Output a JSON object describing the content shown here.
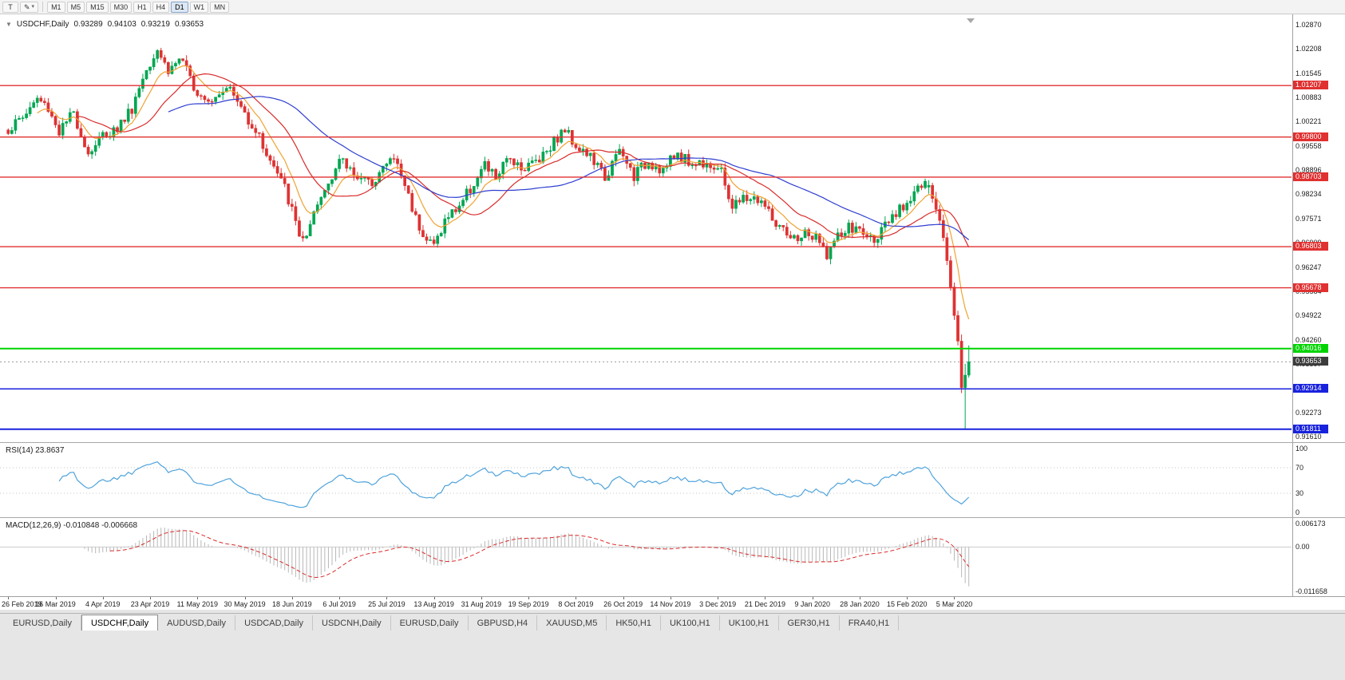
{
  "toolbar": {
    "text_tool_label": "T",
    "draw_tool_glyph": "✎",
    "dropdown_glyph": "▾",
    "timeframes": [
      {
        "label": "M1",
        "active": false
      },
      {
        "label": "M5",
        "active": false
      },
      {
        "label": "M15",
        "active": false
      },
      {
        "label": "M30",
        "active": false
      },
      {
        "label": "H1",
        "active": false
      },
      {
        "label": "H4",
        "active": false
      },
      {
        "label": "D1",
        "active": true
      },
      {
        "label": "W1",
        "active": false
      },
      {
        "label": "MN",
        "active": false
      }
    ]
  },
  "chart": {
    "collapse_glyph": "▼",
    "symbol_title": "USDCHF,Daily",
    "ohlc": {
      "open": "0.93289",
      "high": "0.94103",
      "low": "0.93219",
      "close": "0.93653"
    }
  },
  "chart_data": {
    "type": "candlestick",
    "symbol": "USDCHF",
    "timeframe": "Daily",
    "count": 265,
    "date_tick_interval": 13,
    "noise": 0.0017,
    "x_labels": [
      "26 Feb 2019",
      "16 Mar 2019",
      "4 Apr 2019",
      "23 Apr 2019",
      "11 May 2019",
      "30 May 2019",
      "18 Jun 2019",
      "6 Jul 2019",
      "25 Jul 2019",
      "13 Aug 2019",
      "31 Aug 2019",
      "19 Sep 2019",
      "8 Oct 2019",
      "26 Oct 2019",
      "14 Nov 2019",
      "3 Dec 2019",
      "21 Dec 2019",
      "9 Jan 2020",
      "28 Jan 2020",
      "15 Feb 2020",
      "5 Mar 2020"
    ],
    "price_axis": {
      "min": 0.9161,
      "max": 1.0287,
      "labels": [
        "1.02870",
        "1.02208",
        "1.01545",
        "1.00883",
        "1.00221",
        "0.99558",
        "0.98896",
        "0.98234",
        "0.97571",
        "0.96909",
        "0.96247",
        "0.95584",
        "0.94922",
        "0.94260",
        "0.93597",
        "0.92935",
        "0.92273",
        "0.91610"
      ]
    },
    "anchors": [
      [
        0,
        1.0
      ],
      [
        4,
        1.0035
      ],
      [
        8,
        1.0085
      ],
      [
        11,
        1.006
      ],
      [
        14,
        0.9995
      ],
      [
        18,
        1.0045
      ],
      [
        22,
        0.9935
      ],
      [
        26,
        0.9985
      ],
      [
        30,
        1.0005
      ],
      [
        34,
        1.006
      ],
      [
        38,
        1.017
      ],
      [
        41,
        1.0225
      ],
      [
        44,
        1.016
      ],
      [
        47,
        1.0195
      ],
      [
        52,
        1.0105
      ],
      [
        56,
        1.0085
      ],
      [
        60,
        1.0125
      ],
      [
        64,
        1.006
      ],
      [
        68,
        1.0
      ],
      [
        72,
        0.9915
      ],
      [
        76,
        0.984
      ],
      [
        80,
        0.9715
      ],
      [
        82,
        0.97
      ],
      [
        85,
        0.979
      ],
      [
        89,
        0.988
      ],
      [
        91,
        0.9915
      ],
      [
        95,
        0.9885
      ],
      [
        99,
        0.985
      ],
      [
        103,
        0.9895
      ],
      [
        106,
        0.9925
      ],
      [
        109,
        0.985
      ],
      [
        112,
        0.976
      ],
      [
        115,
        0.97
      ],
      [
        117,
        0.9685
      ],
      [
        120,
        0.975
      ],
      [
        124,
        0.9795
      ],
      [
        128,
        0.9855
      ],
      [
        131,
        0.99
      ],
      [
        134,
        0.987
      ],
      [
        138,
        0.9925
      ],
      [
        142,
        0.9895
      ],
      [
        146,
        0.9925
      ],
      [
        150,
        0.997
      ],
      [
        153,
        1.0
      ],
      [
        156,
        0.996
      ],
      [
        160,
        0.9925
      ],
      [
        164,
        0.987
      ],
      [
        168,
        0.994
      ],
      [
        172,
        0.9875
      ],
      [
        176,
        0.9915
      ],
      [
        180,
        0.989
      ],
      [
        184,
        0.9935
      ],
      [
        188,
        0.9905
      ],
      [
        192,
        0.9915
      ],
      [
        196,
        0.988
      ],
      [
        199,
        0.979
      ],
      [
        203,
        0.9815
      ],
      [
        207,
        0.9805
      ],
      [
        211,
        0.974
      ],
      [
        215,
        0.9695
      ],
      [
        219,
        0.9715
      ],
      [
        222,
        0.97
      ],
      [
        225,
        0.9662
      ],
      [
        228,
        0.9705
      ],
      [
        231,
        0.973
      ],
      [
        234,
        0.9725
      ],
      [
        237,
        0.97
      ],
      [
        240,
        0.972
      ],
      [
        244,
        0.9765
      ],
      [
        247,
        0.9805
      ],
      [
        250,
        0.9845
      ],
      [
        252,
        0.9843
      ]
    ],
    "overrides": {
      "253": [
        0.9843,
        0.9862,
        0.9825,
        0.9848
      ],
      "254": [
        0.9848,
        0.9855,
        0.98,
        0.9812
      ],
      "255": [
        0.9812,
        0.983,
        0.977,
        0.9782
      ],
      "256": [
        0.9782,
        0.9795,
        0.974,
        0.9752
      ],
      "257": [
        0.9752,
        0.9768,
        0.9695,
        0.9705
      ],
      "258": [
        0.9705,
        0.9718,
        0.963,
        0.9642
      ],
      "259": [
        0.9642,
        0.9655,
        0.956,
        0.957
      ],
      "260": [
        0.957,
        0.9582,
        0.948,
        0.9492
      ],
      "261": [
        0.9492,
        0.9505,
        0.941,
        0.9422
      ],
      "262": [
        0.9422,
        0.944,
        0.928,
        0.9295
      ],
      "263": [
        0.9295,
        0.936,
        0.9182,
        0.9329
      ],
      "264": [
        0.93289,
        0.94103,
        0.93219,
        0.93653
      ]
    },
    "colors": {
      "up": "#00a651",
      "down": "#de3232",
      "background": "#ffffff"
    },
    "moving_averages": [
      {
        "period": 9,
        "method": "ema",
        "color": "#f0a233",
        "name": "ma-fast"
      },
      {
        "period": 20,
        "method": "sma",
        "color": "#d92b2b",
        "name": "ma-medium"
      },
      {
        "period": 45,
        "method": "sma",
        "color": "#2f3fd0",
        "name": "ma-slow"
      }
    ],
    "lines": [
      {
        "price": 1.01207,
        "label": "1.01207",
        "color": "#e03030",
        "width": 1.4
      },
      {
        "price": 0.998,
        "label": "0.99800",
        "color": "#e03030",
        "width": 1.4
      },
      {
        "price": 0.98703,
        "label": "0.98703",
        "color": "#e03030",
        "width": 1.4
      },
      {
        "price": 0.96803,
        "label": "0.96803",
        "color": "#e03030",
        "width": 1.4
      },
      {
        "price": 0.95678,
        "label": "0.95678",
        "color": "#e03030",
        "width": 1.4
      },
      {
        "price": 0.94016,
        "label": "0.94016",
        "color": "#00d400",
        "width": 2
      },
      {
        "price": 0.92914,
        "label": "0.92914",
        "color": "#1822dc",
        "width": 1.6
      },
      {
        "price": 0.91811,
        "label": "0.91811",
        "color": "#1822dc",
        "width": 2
      }
    ],
    "current_price": {
      "value": 0.93653,
      "label": "0.93653",
      "badge_color": "#3c3c3c"
    },
    "indicators": {
      "rsi": {
        "label": "RSI(14) 23.8637",
        "period": 14,
        "current": 23.8637,
        "color": "#4fa3dc",
        "levels": [
          {
            "value": 100,
            "label": "100",
            "dotted": false
          },
          {
            "value": 70,
            "label": "70",
            "dotted": true
          },
          {
            "value": 30,
            "label": "30",
            "dotted": true
          },
          {
            "value": 0,
            "label": "0",
            "dotted": false
          }
        ]
      },
      "macd": {
        "label": "MACD(12,26,9) -0.010848 -0.006668",
        "fast": 12,
        "slow": 26,
        "signal": 9,
        "main_value": -0.010848,
        "signal_value": -0.006668,
        "hist_color": "#b8b8b8",
        "signal_color": "#d92b2b",
        "axis": [
          {
            "value": 0.006173,
            "label": "0.006173"
          },
          {
            "value": 0,
            "label": "0.00"
          },
          {
            "value": -0.011658,
            "label": "-0.011658"
          }
        ]
      }
    }
  },
  "tabs": [
    {
      "label": "EURUSD,Daily",
      "active": false
    },
    {
      "label": "USDCHF,Daily",
      "active": true
    },
    {
      "label": "AUDUSD,Daily",
      "active": false
    },
    {
      "label": "USDCAD,Daily",
      "active": false
    },
    {
      "label": "USDCNH,Daily",
      "active": false
    },
    {
      "label": "EURUSD,Daily",
      "active": false
    },
    {
      "label": "GBPUSD,H4",
      "active": false
    },
    {
      "label": "XAUUSD,M5",
      "active": false
    },
    {
      "label": "HK50,H1",
      "active": false
    },
    {
      "label": "UK100,H1",
      "active": false
    },
    {
      "label": "UK100,H1",
      "active": false
    },
    {
      "label": "GER30,H1",
      "active": false
    },
    {
      "label": "FRA40,H1",
      "active": false
    }
  ]
}
